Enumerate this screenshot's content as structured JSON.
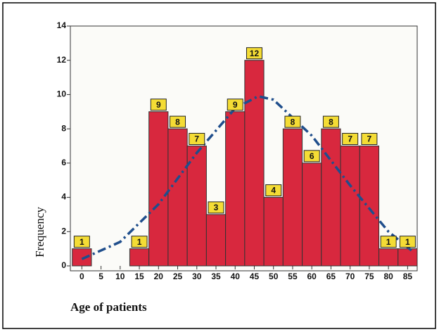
{
  "chart_data": {
    "type": "histogram",
    "xlabel": "Age of patients",
    "ylabel": "Frequency",
    "bins": [
      -2.5,
      2.5,
      7.5,
      12.5,
      17.5,
      22.5,
      27.5,
      32.5,
      37.5,
      42.5,
      47.5,
      52.5,
      57.5,
      62.5,
      67.5,
      72.5,
      77.5,
      82.5,
      87.5
    ],
    "values": [
      1,
      0,
      0,
      1,
      9,
      8,
      7,
      3,
      9,
      12,
      4,
      8,
      6,
      8,
      7,
      7,
      1,
      1
    ],
    "color": "#d8283e",
    "curve": {
      "x": [
        0,
        10,
        20,
        30,
        40,
        46,
        50,
        60,
        70,
        80,
        86
      ],
      "y": [
        0.4,
        1.4,
        3.6,
        6.6,
        9.2,
        9.9,
        9.7,
        7.6,
        4.7,
        2.0,
        0.9
      ],
      "color": "#1f4e8c"
    },
    "xlim": [
      -3,
      87.5
    ],
    "ylim": [
      0,
      14
    ],
    "xticks": [
      0,
      5,
      10,
      15,
      20,
      25,
      30,
      35,
      40,
      45,
      50,
      55,
      60,
      65,
      70,
      75,
      80,
      85
    ],
    "yticks": [
      0,
      2,
      4,
      6,
      8,
      10,
      12,
      14
    ]
  }
}
